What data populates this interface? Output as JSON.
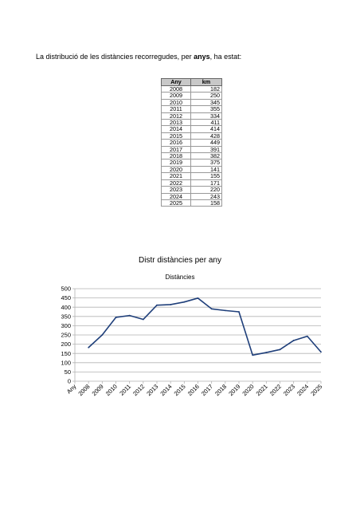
{
  "intro": {
    "prefix": "La distribució de les distàncies recorregudes, per ",
    "bold": "anys",
    "suffix": ", ha estat:"
  },
  "table": {
    "headers": [
      "Any",
      "km"
    ],
    "rows": [
      [
        "2008",
        "182"
      ],
      [
        "2009",
        "250"
      ],
      [
        "2010",
        "345"
      ],
      [
        "2011",
        "355"
      ],
      [
        "2012",
        "334"
      ],
      [
        "2013",
        "411"
      ],
      [
        "2014",
        "414"
      ],
      [
        "2015",
        "428"
      ],
      [
        "2016",
        "449"
      ],
      [
        "2017",
        "391"
      ],
      [
        "2018",
        "382"
      ],
      [
        "2019",
        "375"
      ],
      [
        "2020",
        "141"
      ],
      [
        "2021",
        "155"
      ],
      [
        "2022",
        "171"
      ],
      [
        "2023",
        "220"
      ],
      [
        "2024",
        "243"
      ],
      [
        "2025",
        "158"
      ]
    ]
  },
  "chart_data": {
    "type": "line",
    "title": "Distr distàncies per any",
    "subtitle": "Distàncies",
    "xlabel": "",
    "ylabel": "",
    "categories": [
      "Any",
      "2008",
      "2009",
      "2010",
      "2011",
      "2012",
      "2013",
      "2014",
      "2015",
      "2016",
      "2017",
      "2018",
      "2019",
      "2020",
      "2021",
      "2022",
      "2023",
      "2024",
      "2025"
    ],
    "series": [
      {
        "values": [
          null,
          182,
          250,
          345,
          355,
          334,
          411,
          414,
          428,
          449,
          391,
          382,
          375,
          141,
          155,
          171,
          220,
          243,
          158
        ]
      }
    ],
    "ylim": [
      0,
      500
    ],
    "yticks": [
      0,
      50,
      100,
      150,
      200,
      250,
      300,
      350,
      400,
      450,
      500
    ],
    "grid": true,
    "legend": "none",
    "line_color": "#1f3f7a"
  }
}
